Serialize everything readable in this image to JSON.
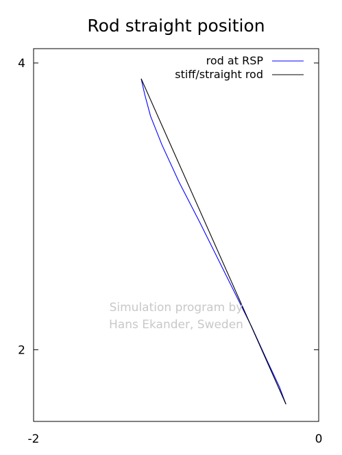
{
  "chart_data": {
    "type": "line",
    "title": "Rod straight position",
    "xlabel": "",
    "ylabel": "",
    "xlim": [
      -2,
      0
    ],
    "ylim": [
      1.5,
      4.1
    ],
    "x_ticks": [
      {
        "value": -2,
        "label": "-2"
      },
      {
        "value": 0,
        "label": "0"
      }
    ],
    "y_ticks": [
      {
        "value": 4,
        "label": "4"
      },
      {
        "value": 2,
        "label": "2"
      }
    ],
    "grid": false,
    "legend_position": "top-right",
    "series": [
      {
        "name": "rod at RSP",
        "color": "#0000ff",
        "points": [
          {
            "x": -1.245,
            "y": 3.89
          },
          {
            "x": -1.22,
            "y": 3.78
          },
          {
            "x": -1.18,
            "y": 3.63
          },
          {
            "x": -1.1,
            "y": 3.43
          },
          {
            "x": -0.98,
            "y": 3.17
          },
          {
            "x": -0.83,
            "y": 2.88
          },
          {
            "x": -0.65,
            "y": 2.52
          },
          {
            "x": -0.47,
            "y": 2.16
          },
          {
            "x": -0.36,
            "y": 1.92
          },
          {
            "x": -0.275,
            "y": 1.74
          },
          {
            "x": -0.23,
            "y": 1.62
          }
        ]
      },
      {
        "name": "stiff/straight rod",
        "color": "#000000",
        "points": [
          {
            "x": -1.245,
            "y": 3.89
          },
          {
            "x": -0.23,
            "y": 1.62
          }
        ]
      }
    ],
    "annotations": [
      {
        "text": "Simulation program by",
        "x": -1.0,
        "y": 2.27
      },
      {
        "text": "Hans Ekander, Sweden",
        "x": -1.0,
        "y": 2.15
      }
    ]
  }
}
